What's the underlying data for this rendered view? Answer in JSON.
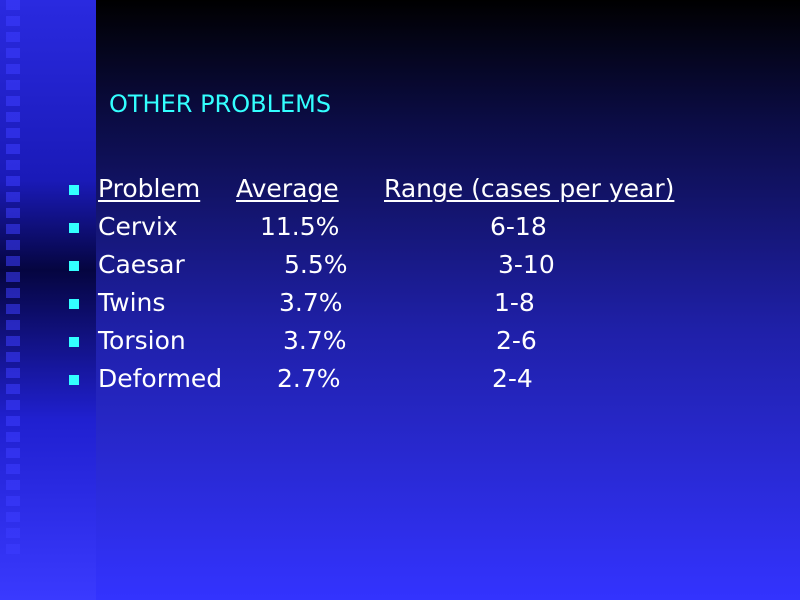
{
  "slide": {
    "title": "OTHER PROBLEMS",
    "header": {
      "col1": "Problem",
      "col2": "Average",
      "col3": "Range (cases per year)"
    },
    "rows": [
      {
        "problem": "Cervix",
        "average": "11.5%",
        "range": "6-18"
      },
      {
        "problem": "Caesar",
        "average": "5.5%",
        "range": "3-10"
      },
      {
        "problem": "Twins",
        "average": "3.7%",
        "range": "1-8"
      },
      {
        "problem": "Torsion",
        "average": "3.7%",
        "range": "2-6"
      },
      {
        "problem": "Deformed",
        "average": "2.7%",
        "range": "2-4"
      }
    ],
    "colors": {
      "title": "#33ffff",
      "bullet": "#33ffff",
      "text": "#ffffff",
      "background_bottom": "#3333ff"
    }
  }
}
